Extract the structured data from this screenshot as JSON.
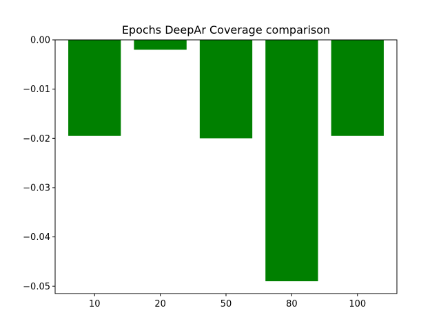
{
  "chart_data": {
    "type": "bar",
    "title": "Epochs DeepAr Coverage comparison",
    "xlabel": "",
    "ylabel": "",
    "categories": [
      "10",
      "20",
      "50",
      "80",
      "100"
    ],
    "values": [
      -0.0195,
      -0.002,
      -0.02,
      -0.049,
      -0.0195
    ],
    "ylim": [
      -0.0515,
      0.0
    ],
    "yticks": [
      0.0,
      -0.01,
      -0.02,
      -0.03,
      -0.04,
      -0.05
    ],
    "ytick_labels": [
      "0.00",
      "−0.01",
      "−0.02",
      "−0.03",
      "−0.04",
      "−0.05"
    ],
    "grid": false,
    "legend": false,
    "bar_color": "#008000"
  }
}
